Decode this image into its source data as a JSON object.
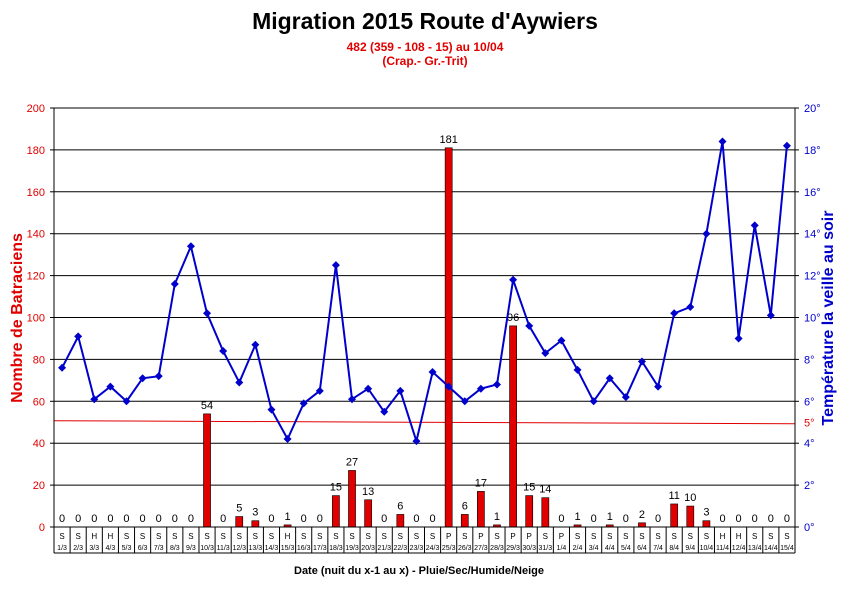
{
  "chart_data": {
    "type": "bar",
    "title": "Migration 2015 Route d'Aywiers",
    "subtitles": [
      "482 (359 - 108 - 15) au 10/04",
      "(Crap.- Gr.-Trit)"
    ],
    "xlabel": "Date (nuit du x-1 au x) - Pluie/Sec/Humide/Neige",
    "ylabel": "Nombre de Batraciens",
    "y2label": "Température la veille au soir",
    "ylim": [
      0,
      200
    ],
    "yticks": [
      "0",
      "20",
      "40",
      "60",
      "80",
      "100",
      "120",
      "140",
      "160",
      "180",
      "200"
    ],
    "y2lim": [
      0,
      20
    ],
    "y2ticks": [
      "0°",
      "2°",
      "4°",
      "6°",
      "8°",
      "10°",
      "12°",
      "14°",
      "16°",
      "18°",
      "20°"
    ],
    "grid": true,
    "colors": {
      "bars": "#e00000",
      "line": "#0000cc",
      "axis_left": "#e00000",
      "axis_right": "#0000cc",
      "threshold": "#e00000"
    },
    "categories": [
      "1/3",
      "2/3",
      "3/3",
      "4/3",
      "5/3",
      "6/3",
      "7/3",
      "8/3",
      "9/3",
      "10/3",
      "11/3",
      "12/3",
      "13/3",
      "14/3",
      "15/3",
      "16/3",
      "17/3",
      "18/3",
      "19/3",
      "20/3",
      "21/3",
      "22/3",
      "23/3",
      "24/3",
      "25/3",
      "26/3",
      "27/3",
      "28/3",
      "29/3",
      "30/3",
      "31/3",
      "1/4",
      "2/4",
      "3/4",
      "4/4",
      "5/4",
      "6/4",
      "7/4",
      "8/4",
      "9/4",
      "10/4",
      "11/4",
      "12/4",
      "13/4",
      "14/4",
      "15/4"
    ],
    "weather": [
      "S",
      "S",
      "H",
      "H",
      "S",
      "S",
      "S",
      "S",
      "S",
      "S",
      "S",
      "S",
      "S",
      "S",
      "H",
      "S",
      "S",
      "S",
      "S",
      "S",
      "S",
      "S",
      "S",
      "S",
      "P",
      "S",
      "P",
      "S",
      "P",
      "P",
      "S",
      "P",
      "S",
      "S",
      "S",
      "S",
      "S",
      "S",
      "S",
      "S",
      "S",
      "H",
      "H",
      "S",
      "S",
      "S"
    ],
    "series": [
      {
        "type": "bar",
        "values": [
          0,
          0,
          0,
          0,
          0,
          0,
          0,
          0,
          0,
          54,
          0,
          5,
          3,
          0,
          1,
          0,
          0,
          15,
          27,
          13,
          0,
          6,
          0,
          0,
          181,
          6,
          17,
          1,
          96,
          15,
          14,
          0,
          1,
          0,
          1,
          0,
          2,
          0,
          11,
          10,
          3,
          0,
          0,
          0,
          0,
          0
        ],
        "labels": [
          "0",
          "0",
          "0",
          "0",
          "0",
          "0",
          "0",
          "0",
          "0",
          "54",
          "0",
          "5",
          "3",
          "0",
          "1",
          "0",
          "0",
          "15",
          "27",
          "13",
          "0",
          "6",
          "0",
          "0",
          "181",
          "6",
          "17",
          "1",
          "96",
          "15",
          "14",
          "0",
          "1",
          "0",
          "1",
          "0",
          "2",
          "0",
          "11",
          "10",
          "3",
          "0",
          "0",
          "0",
          "0",
          "0"
        ]
      },
      {
        "type": "line",
        "axis": "right",
        "values": [
          7.6,
          9.1,
          6.1,
          6.7,
          6.0,
          7.1,
          7.2,
          11.6,
          13.4,
          10.2,
          8.4,
          6.9,
          8.7,
          5.6,
          4.2,
          5.9,
          6.5,
          12.5,
          6.1,
          6.6,
          5.5,
          6.5,
          4.1,
          7.4,
          6.7,
          6.0,
          6.6,
          6.8,
          11.8,
          9.6,
          8.3,
          8.9,
          7.5,
          6.0,
          7.1,
          6.2,
          7.9,
          6.7,
          10.2,
          10.5,
          14.0,
          18.4,
          9.0,
          14.4,
          10.1,
          18.2
        ]
      }
    ],
    "threshold": {
      "value": 5,
      "label": "5°"
    }
  }
}
